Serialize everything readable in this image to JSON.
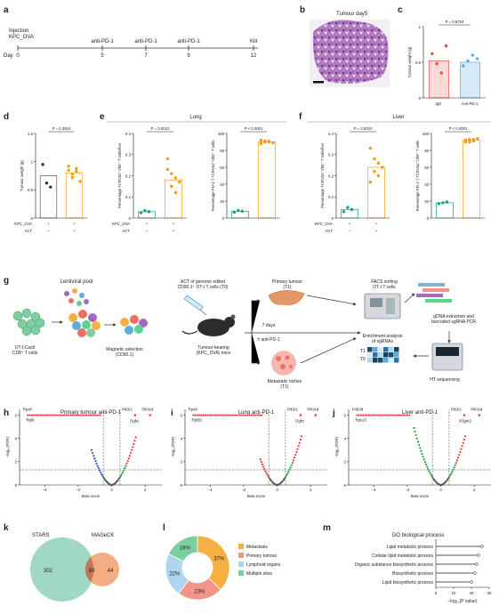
{
  "panel_labels": {
    "a": "a",
    "b": "b",
    "c": "c",
    "d": "d",
    "e": "e",
    "f": "f",
    "g": "g",
    "h": "h",
    "i": "i",
    "j": "j",
    "k": "k",
    "l": "l",
    "m": "m"
  },
  "timeline": {
    "day_label": "Day",
    "events": [
      {
        "day": "0",
        "label": "Injection\nKPC_OVA"
      },
      {
        "day": "5",
        "label": "anti-PD-1"
      },
      {
        "day": "7",
        "label": "anti-PD-1"
      },
      {
        "day": "9",
        "label": "anti-PD-1"
      },
      {
        "day": "12",
        "label": "Kill"
      }
    ]
  },
  "panel_b_title": "Tumour day5",
  "panel_c": {
    "p": "P = 0.8704",
    "ylabel": "Tumour weight (g)",
    "groups": [
      "IgG",
      "Anti-PD-1"
    ]
  },
  "panel_d": {
    "p": "P = 0.3919",
    "ylabel": "Tumour weight (g)"
  },
  "panel_e": {
    "header": "Lung",
    "p1": "P = 0.0012",
    "p2": "P < 0.0001",
    "ylabel1": "Percentage TCRVα2⁺Vb5⁺ T cells/live",
    "ylabel2": "Percentage PD-1⁺/ TCRVα2⁺Vb5⁺ T cells"
  },
  "panel_f": {
    "header": "Liver",
    "p1": "P = 0.0010",
    "p2": "P < 0.0001",
    "ylabel1": "Percentage TCRVα2⁺Vb5⁺ T cells/live",
    "ylabel2": "Percentage PD-1⁺/ TCRVα2⁺Vb5⁺ T cells"
  },
  "row_labels": {
    "kpc": "KPC_OVA",
    "act": "ACT",
    "minus": "–",
    "plus": "+"
  },
  "panel_g": {
    "lentiviral": "Lentiviral pool",
    "cells": "OT-I;Cas9\nCD8⁺ T cells",
    "magnetic": "Magnetic selection\n(CD90.1)",
    "act": "ACT of genome edited\nCD90.1⁺ OT-I T cells (T0)",
    "mice": "Tumour-bearing\n(KPC_OVA) mice",
    "days": "7 days",
    "antipd1": "± anti-PD-1",
    "primary": "Primary tumour\n(T1)",
    "metastatic": "Metastatic niches\n(T1)",
    "facs": "FACS sorting\nOT-I T cells",
    "gdna": "gDNA extraction and\nbarcoded sgRNA PCR",
    "enrich": "Enrichment analysis\nof sgRNAs",
    "t1": "T1",
    "t0": "T0",
    "hts": "HT sequencing"
  },
  "volcano_h": {
    "title": "Primary tumour anti-PD-1",
    "genes": [
      "Rps8",
      "Rpl9",
      "Pik3r1",
      "Pik3cd",
      "Dgkz"
    ],
    "xlabel": "Beta score",
    "ylabel": "–log₁₀(FDR)",
    "xticks": [
      "–4",
      "–2",
      "0",
      "2"
    ],
    "yticks": [
      "0",
      "2",
      "4",
      "6"
    ]
  },
  "volcano_i": {
    "title": "Lung anti-PD-1",
    "genes": [
      "Rps8",
      "Rpl36",
      "Pik3r1",
      "Pik3cd",
      "Dgkz"
    ],
    "xlabel": "Beta score",
    "ylabel": "–log₁₀(FDR)",
    "xticks": [
      "–4",
      "–2",
      "0",
      "2"
    ],
    "yticks": [
      "0",
      "2",
      "4",
      "6"
    ]
  },
  "volcano_j": {
    "title": "Liver anti-PD-1",
    "genes": [
      "Polr3d",
      "Rps13",
      "Pik3r1",
      "Pik3cd",
      "B3gnt2"
    ],
    "xlabel": "Beta score",
    "ylabel": "–log₁₀(FDR)",
    "xticks": [
      "–4",
      "–2",
      "0",
      "2"
    ],
    "yticks": [
      "0",
      "2",
      "4",
      "6"
    ]
  },
  "venn": {
    "left_label": "STARS",
    "right_label": "MAGeCK",
    "left_only": "302",
    "both": "83",
    "right_only": "44"
  },
  "donut": {
    "slices": [
      {
        "label": "Metastasis",
        "value": 37,
        "text": "37%",
        "color": "#f5b041"
      },
      {
        "label": "Primary tumour",
        "value": 23,
        "text": "23%",
        "color": "#f1948a"
      },
      {
        "label": "Lymphoid organs",
        "value": 22,
        "text": "22%",
        "color": "#aed6f1"
      },
      {
        "label": "Multiple sites",
        "value": 18,
        "text": "18%",
        "color": "#7dcea0"
      }
    ]
  },
  "go": {
    "title": "GO biological process",
    "xlabel": "–log₁₀(P value)",
    "xticks": [
      "0",
      "10",
      "20",
      "30"
    ],
    "terms": [
      {
        "label": "Lipid metabolic process",
        "value": 26
      },
      {
        "label": "Cellular lipid metabolic process",
        "value": 24
      },
      {
        "label": "Organic substance biosynthetic process",
        "value": 23
      },
      {
        "label": "Biosynthetic process",
        "value": 22
      },
      {
        "label": "Lipid biosynthetic process",
        "value": 20
      }
    ]
  },
  "colors": {
    "igg": "#e74c3c",
    "antipd1": "#5dade2",
    "orange": "#f39c12",
    "teal": "#16a085",
    "volcano_red": "#e6403a",
    "volcano_green": "#2e9e44",
    "volcano_blue": "#3a56c9",
    "volcano_grey": "#555555"
  }
}
